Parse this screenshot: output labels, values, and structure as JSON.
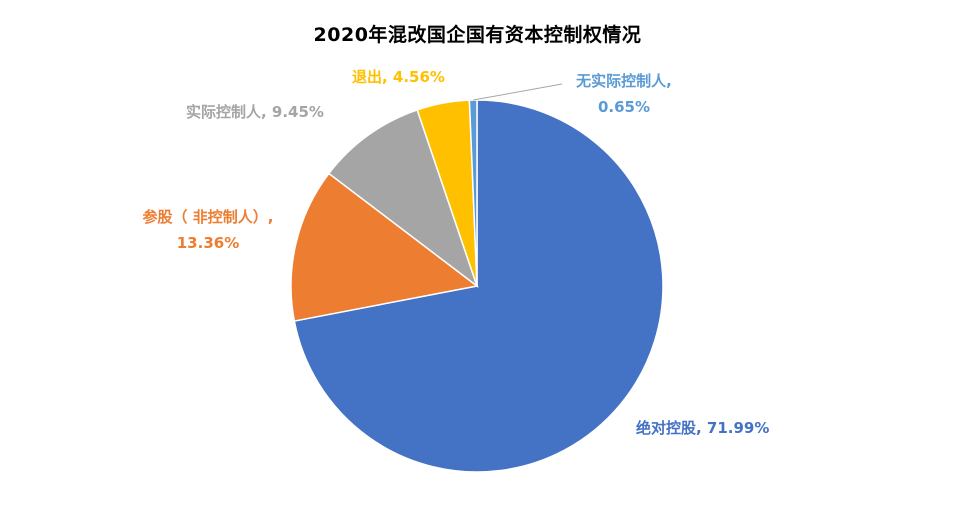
{
  "chart_data": {
    "type": "pie",
    "title": "2020年混改国企国有资本控制权情况",
    "slices": [
      {
        "name": "绝对控股",
        "value": 71.99,
        "label": "71.99%",
        "color": "#4472C4"
      },
      {
        "name": "参股（非控制人）",
        "value": 13.36,
        "label": "13.36%",
        "color": "#ED7D31"
      },
      {
        "name": "实际控制人",
        "value": 9.45,
        "label": "9.45%",
        "color": "#A5A5A5"
      },
      {
        "name": "退出",
        "value": 4.56,
        "label": "4.56%",
        "color": "#FFC000"
      },
      {
        "name": "无实际控制人",
        "value": 0.65,
        "label": "0.65%",
        "color": "#5B9BD5"
      }
    ],
    "data_labels": {
      "absolute": {
        "line1": "绝对控股, 71.99%"
      },
      "participation": {
        "line1": "参股（ 非控制人）,",
        "line2": "13.36%"
      },
      "actual": {
        "line1": "实际控制人, 9.45%"
      },
      "exit": {
        "line1": "退出, 4.56%"
      },
      "none": {
        "line1": "无实际控制人,",
        "line2": "0.65%"
      }
    },
    "legend": "none"
  }
}
